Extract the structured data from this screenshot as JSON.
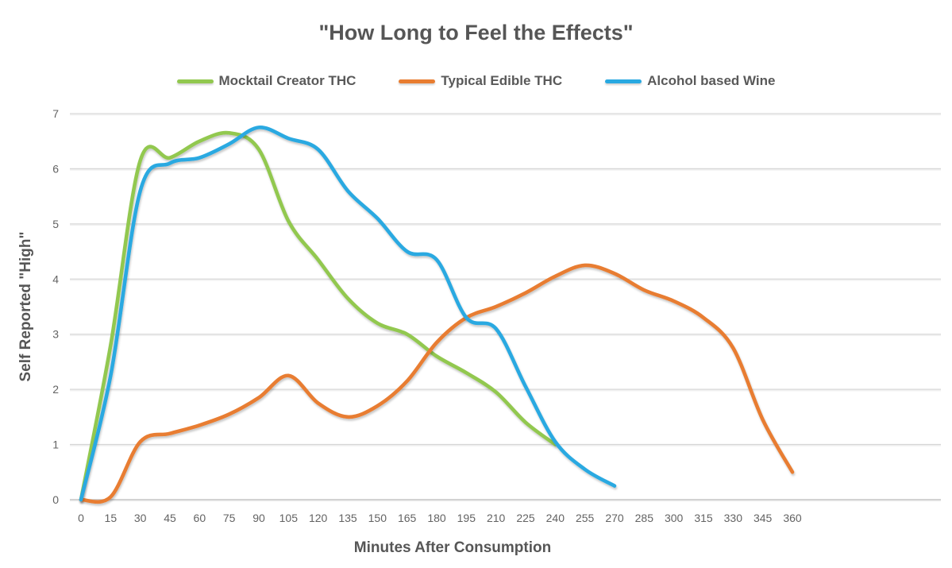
{
  "title": "\"How Long to Feel the Effects\"",
  "legend": {
    "items": [
      {
        "label": "Mocktail Creator THC",
        "color": "#92C84F"
      },
      {
        "label": "Typical Edible THC",
        "color": "#E87D31"
      },
      {
        "label": "Alcohol based Wine",
        "color": "#29A9E1"
      }
    ]
  },
  "axes": {
    "x_label": "Minutes After Consumption",
    "y_label": "Self Reported \"High\"",
    "x_ticks": [
      0,
      15,
      30,
      45,
      60,
      75,
      90,
      105,
      120,
      135,
      150,
      165,
      180,
      195,
      210,
      225,
      240,
      255,
      270,
      285,
      300,
      315,
      330,
      345,
      360
    ],
    "y_ticks": [
      0,
      1,
      2,
      3,
      4,
      5,
      6,
      7
    ]
  },
  "colors": {
    "grid": "#D6D6D6",
    "grid_highlight": "#EFEFEF",
    "axis_line": "#C4C4C4",
    "tick_text": "#636363"
  },
  "chart_data": {
    "type": "line",
    "smooth": true,
    "grid": true,
    "legend_position": "top",
    "title": "\"How Long to Feel the Effects\"",
    "xlabel": "Minutes After Consumption",
    "ylabel": "Self Reported \"High\"",
    "xlim": [
      0,
      360
    ],
    "ylim": [
      0,
      7
    ],
    "x": [
      0,
      15,
      30,
      45,
      60,
      75,
      90,
      105,
      120,
      135,
      150,
      165,
      180,
      195,
      210,
      225,
      240,
      255,
      270,
      285,
      300,
      315,
      330,
      345,
      360
    ],
    "series": [
      {
        "name": "Mocktail Creator THC",
        "color": "#92C84F",
        "values": [
          0,
          2.8,
          6.15,
          6.2,
          6.5,
          6.65,
          6.35,
          5.05,
          4.35,
          3.65,
          3.2,
          3.0,
          2.6,
          2.3,
          1.95,
          1.4,
          1.0,
          null,
          null,
          null,
          null,
          null,
          null,
          null,
          null
        ]
      },
      {
        "name": "Typical Edible THC",
        "color": "#E87D31",
        "values": [
          0,
          0.05,
          1.05,
          1.2,
          1.35,
          1.55,
          1.85,
          2.25,
          1.75,
          1.5,
          1.7,
          2.15,
          2.85,
          3.3,
          3.5,
          3.75,
          4.05,
          4.25,
          4.1,
          3.8,
          3.6,
          3.3,
          2.75,
          1.45,
          0.5
        ]
      },
      {
        "name": "Alcohol based Wine",
        "color": "#29A9E1",
        "values": [
          0,
          2.25,
          5.6,
          6.1,
          6.2,
          6.45,
          6.75,
          6.55,
          6.35,
          5.6,
          5.1,
          4.5,
          4.35,
          3.3,
          3.1,
          2.05,
          1.05,
          0.55,
          0.25,
          null,
          null,
          null,
          null,
          null,
          null
        ]
      }
    ]
  }
}
